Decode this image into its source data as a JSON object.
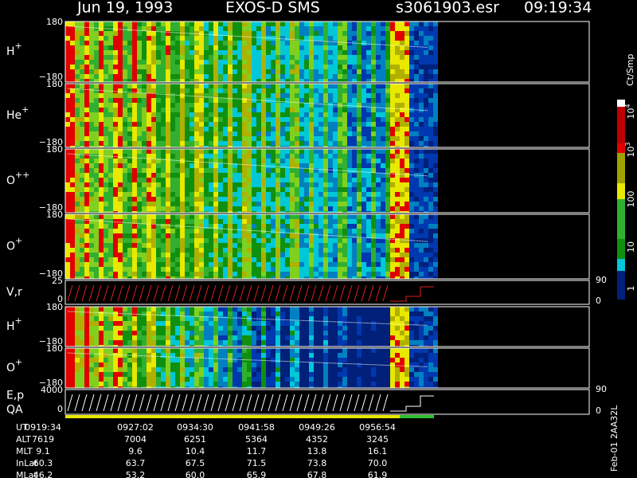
{
  "header": {
    "date": "Jun 19, 1993",
    "instrument": "EXOS-D SMS",
    "file": "s3061903.esr",
    "time": "09:19:34"
  },
  "panels": [
    {
      "label": "H",
      "sup": "+",
      "ticks": [
        "180",
        "−180"
      ]
    },
    {
      "label": "He",
      "sup": "+",
      "ticks": [
        "180",
        "−180"
      ]
    },
    {
      "label": "O",
      "sup": "++",
      "ticks": [
        "180",
        "−180"
      ]
    },
    {
      "label": "O",
      "sup": "+",
      "ticks": [
        "180",
        "−180"
      ]
    },
    {
      "label": "V,r",
      "ticks": [
        "25",
        "0"
      ],
      "right_ticks": [
        "90",
        "0"
      ]
    },
    {
      "label": "H",
      "sup": "+",
      "ticks": [
        "180",
        "−180"
      ]
    },
    {
      "label": "O",
      "sup": "+",
      "ticks": [
        "180",
        "−180"
      ]
    },
    {
      "label": "E,p",
      "label2": "QA",
      "ticks": [
        "4000",
        "0"
      ],
      "right_ticks": [
        "90",
        "0"
      ]
    }
  ],
  "colorbar": {
    "unit": "Ct/Smp",
    "labels": [
      {
        "base": "10",
        "exp": "4"
      },
      {
        "base": "10",
        "exp": "3"
      },
      {
        "base": "100"
      },
      {
        "base": "10"
      },
      {
        "base": "1"
      }
    ]
  },
  "table": {
    "rows": [
      [
        "UT",
        "0919:34",
        "0927:02",
        "0934:30",
        "0941:58",
        "0949:26",
        "0956:54"
      ],
      [
        "ALT",
        "7619",
        "7004",
        "6251",
        "5364",
        "4352",
        "3245"
      ],
      [
        "MLT",
        "9.1",
        "9.6",
        "10.4",
        "11.7",
        "13.8",
        "16.1"
      ],
      [
        "InLat",
        "60.3",
        "63.7",
        "67.5",
        "71.5",
        "73.8",
        "70.0"
      ],
      [
        "MLat",
        "46.2",
        "53.2",
        "60.0",
        "65.9",
        "67.8",
        "61.9"
      ]
    ]
  },
  "footer": "Feb-01 2AA32L"
}
